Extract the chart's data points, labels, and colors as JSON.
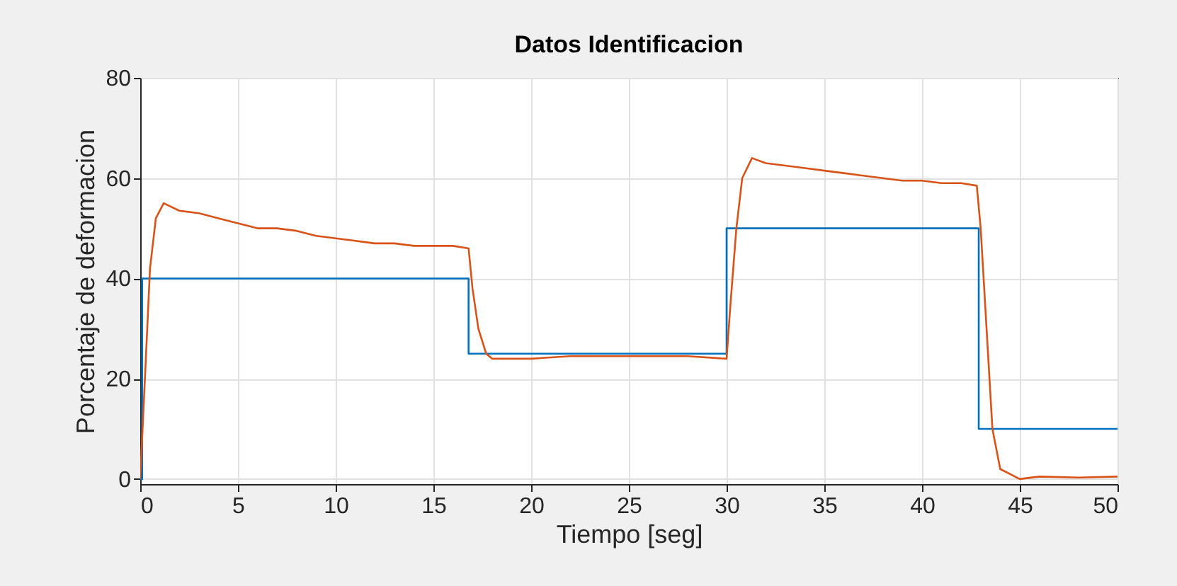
{
  "chart_data": {
    "type": "line",
    "title": "Datos Identificacion",
    "xlabel": "Tiempo [seg]",
    "ylabel": "Porcentaje de deformacion",
    "xlim": [
      0,
      50
    ],
    "ylim": [
      -1,
      80
    ],
    "xticks": [
      0,
      5,
      10,
      15,
      20,
      25,
      30,
      35,
      40,
      45,
      50
    ],
    "yticks": [
      0,
      20,
      40,
      60,
      80
    ],
    "grid": true,
    "series": [
      {
        "type": "step",
        "color": "#0072bd",
        "x": [
          0,
          0.1,
          16.8,
          30,
          42.9,
          50
        ],
        "values": [
          0,
          40,
          25,
          50,
          10,
          10
        ]
      },
      {
        "type": "line",
        "color": "#d95319",
        "x": [
          0,
          0.3,
          0.5,
          0.8,
          1.2,
          2,
          3,
          4,
          5,
          6,
          7,
          8,
          9,
          10,
          11,
          12,
          13,
          14,
          15,
          16,
          16.8,
          17.0,
          17.3,
          17.7,
          18,
          20,
          22,
          25,
          28,
          30,
          30.2,
          30.5,
          30.8,
          31.3,
          32,
          33,
          34,
          35,
          36,
          37,
          38,
          39,
          40,
          41,
          42,
          42.8,
          43.0,
          43.3,
          43.6,
          44,
          45,
          46,
          48,
          50
        ],
        "values": [
          0,
          25,
          42,
          52,
          55,
          53.5,
          53,
          52,
          51,
          50,
          50,
          49.5,
          48.5,
          48,
          47.5,
          47,
          47,
          46.5,
          46.5,
          46.5,
          46,
          38,
          30,
          25,
          24,
          24,
          24.5,
          24.5,
          24.5,
          24,
          35,
          50,
          60,
          64,
          63,
          62.5,
          62,
          61.5,
          61,
          60.5,
          60,
          59.5,
          59.5,
          59,
          59,
          58.5,
          50,
          30,
          10,
          2,
          0,
          0.5,
          0.3,
          0.5
        ]
      }
    ]
  }
}
